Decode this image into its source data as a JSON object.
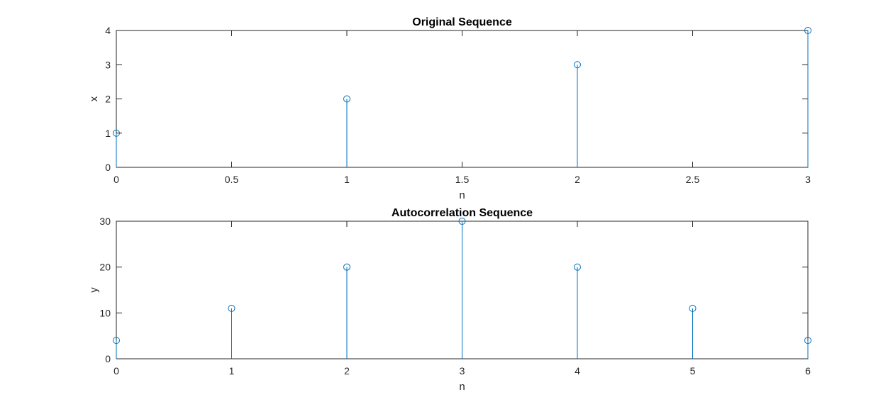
{
  "chart_data": [
    {
      "type": "stem",
      "title": "Original Sequence",
      "xlabel": "n",
      "ylabel": "x",
      "xlim": [
        0,
        3
      ],
      "ylim": [
        0,
        4
      ],
      "xticks": [
        0,
        0.5,
        1,
        1.5,
        2,
        2.5,
        3
      ],
      "yticks": [
        0,
        1,
        2,
        3,
        4
      ],
      "x": [
        0,
        1,
        2,
        3
      ],
      "values": [
        1,
        2,
        3,
        4
      ],
      "grid": false,
      "color": "#0072BD"
    },
    {
      "type": "stem",
      "title": "Autocorrelation Sequence",
      "xlabel": "n",
      "ylabel": "y",
      "xlim": [
        0,
        6
      ],
      "ylim": [
        0,
        30
      ],
      "xticks": [
        0,
        1,
        2,
        3,
        4,
        5,
        6
      ],
      "yticks": [
        0,
        10,
        20,
        30
      ],
      "x": [
        0,
        1,
        2,
        3,
        4,
        5,
        6
      ],
      "values": [
        4,
        11,
        20,
        30,
        20,
        11,
        4
      ],
      "grid": false,
      "color": "#0072BD"
    }
  ]
}
